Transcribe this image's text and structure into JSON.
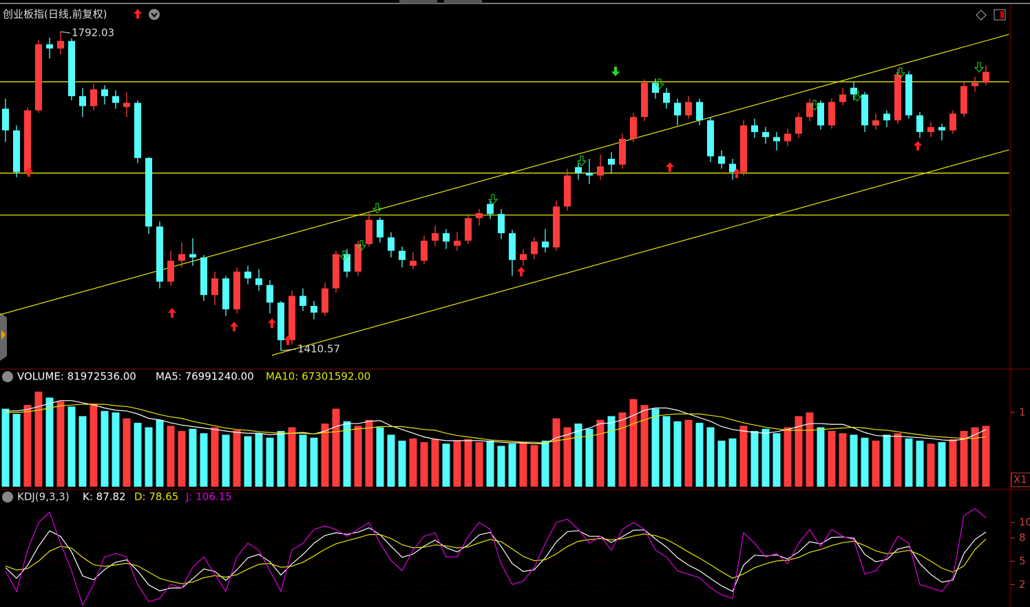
{
  "chart_data": [
    {
      "type": "candlestick",
      "title": "创业板指(日线,前复权)",
      "open": [
        1700,
        1674,
        1624,
        1698,
        1777,
        1772,
        1781,
        1715,
        1703,
        1723,
        1715,
        1702,
        1707,
        1641,
        1559,
        1493,
        1518,
        1526,
        1522,
        1477,
        1497,
        1460,
        1505,
        1497,
        1489,
        1468,
        1423,
        1476,
        1464,
        1456,
        1485,
        1526,
        1505,
        1538,
        1567,
        1546,
        1530,
        1512,
        1518,
        1542,
        1551,
        1536,
        1542,
        1569,
        1586,
        1574,
        1551,
        1519,
        1526,
        1541,
        1534,
        1583,
        1630,
        1623,
        1620,
        1640,
        1633,
        1664,
        1690,
        1731,
        1719,
        1707,
        1692,
        1708,
        1686,
        1643,
        1634,
        1624,
        1680,
        1672,
        1666,
        1661,
        1670,
        1690,
        1707,
        1680,
        1708,
        1725,
        1717,
        1680,
        1694,
        1686,
        1741,
        1692,
        1672,
        1678,
        1674,
        1694,
        1727,
        1731
      ],
      "high": [
        1712,
        1680,
        1702,
        1782,
        1785,
        1792.03,
        1784,
        1725,
        1730,
        1728,
        1722,
        1720,
        1710,
        1642,
        1565,
        1530,
        1540,
        1545,
        1525,
        1505,
        1500,
        1510,
        1512,
        1508,
        1495,
        1470,
        1482,
        1485,
        1470,
        1492,
        1530,
        1532,
        1542,
        1575,
        1570,
        1552,
        1535,
        1528,
        1548,
        1560,
        1556,
        1552,
        1572,
        1580,
        1590,
        1580,
        1555,
        1532,
        1546,
        1556,
        1590,
        1628,
        1635,
        1640,
        1645,
        1648,
        1670,
        1695,
        1735,
        1736,
        1725,
        1712,
        1715,
        1712,
        1690,
        1650,
        1640,
        1686,
        1688,
        1678,
        1672,
        1676,
        1695,
        1712,
        1710,
        1712,
        1725,
        1732,
        1720,
        1694,
        1698,
        1748,
        1745,
        1696,
        1684,
        1682,
        1698,
        1732,
        1738,
        1752
      ],
      "low": [
        1660,
        1618,
        1620,
        1695,
        1760,
        1765,
        1710,
        1690,
        1698,
        1705,
        1700,
        1690,
        1635,
        1550,
        1485,
        1488,
        1510,
        1512,
        1470,
        1465,
        1452,
        1455,
        1490,
        1482,
        1455,
        1410.57,
        1418,
        1458,
        1448,
        1452,
        1480,
        1498,
        1500,
        1535,
        1540,
        1522,
        1510,
        1508,
        1514,
        1536,
        1532,
        1530,
        1538,
        1560,
        1568,
        1544,
        1500,
        1512,
        1520,
        1528,
        1530,
        1578,
        1615,
        1610,
        1615,
        1622,
        1628,
        1660,
        1685,
        1712,
        1700,
        1680,
        1688,
        1680,
        1636,
        1628,
        1615,
        1620,
        1665,
        1658,
        1650,
        1655,
        1665,
        1685,
        1675,
        1676,
        1704,
        1710,
        1672,
        1675,
        1678,
        1682,
        1688,
        1665,
        1666,
        1662,
        1670,
        1690,
        1720,
        1728
      ],
      "close": [
        1674,
        1624,
        1698,
        1777,
        1772,
        1781,
        1715,
        1703,
        1723,
        1715,
        1707,
        1707,
        1641,
        1559,
        1493,
        1518,
        1526,
        1522,
        1477,
        1497,
        1460,
        1505,
        1497,
        1489,
        1468,
        1423,
        1476,
        1464,
        1456,
        1485,
        1526,
        1505,
        1538,
        1567,
        1546,
        1530,
        1519,
        1518,
        1542,
        1551,
        1541,
        1542,
        1569,
        1575,
        1574,
        1551,
        1519,
        1526,
        1541,
        1534,
        1583,
        1620,
        1623,
        1620,
        1631,
        1633,
        1664,
        1690,
        1731,
        1719,
        1707,
        1692,
        1708,
        1686,
        1643,
        1634,
        1624,
        1680,
        1672,
        1666,
        1661,
        1670,
        1690,
        1707,
        1680,
        1708,
        1717,
        1717,
        1680,
        1686,
        1686,
        1741,
        1692,
        1672,
        1678,
        1674,
        1694,
        1727,
        1731,
        1744
      ],
      "up_color": "#ff3c3c",
      "down_color": "#54fcfc",
      "ylim": [
        1390,
        1830
      ],
      "hlines": {
        "values": [
          1732.2,
          1622.9,
          1572.7
        ],
        "color": "#e8e800"
      },
      "trendlines": [
        {
          "x": [
            -0.5,
            91.1
          ],
          "y": [
            1453.5,
            1788.9
          ]
        },
        {
          "x": [
            24.2,
            91.1
          ],
          "y": [
            1405,
            1650.8
          ]
        }
      ],
      "annotations": [
        "1792.03",
        "1410.57"
      ]
    },
    {
      "type": "bar",
      "ylim": [
        0,
        1.37
      ],
      "yticks": [
        1
      ],
      "unit_label": "X1",
      "series": [
        {
          "name": "VOLUME: 81972536.00",
          "color": "#ffffff",
          "values": [
            1.05,
            0.98,
            1.1,
            1.28,
            1.2,
            1.15,
            1.08,
            0.95,
            1.12,
            1.02,
            1.0,
            0.92,
            0.86,
            0.8,
            0.9,
            0.82,
            0.75,
            0.78,
            0.72,
            0.8,
            0.7,
            0.76,
            0.68,
            0.72,
            0.66,
            0.75,
            0.8,
            0.7,
            0.66,
            0.85,
            1.05,
            0.88,
            0.82,
            0.9,
            0.8,
            0.7,
            0.62,
            0.65,
            0.6,
            0.64,
            0.58,
            0.62,
            0.64,
            0.6,
            0.62,
            0.55,
            0.58,
            0.6,
            0.56,
            0.62,
            0.92,
            0.8,
            0.85,
            0.78,
            0.9,
            0.95,
            1.0,
            1.18,
            1.1,
            1.05,
            0.95,
            0.88,
            0.9,
            0.86,
            0.8,
            0.62,
            0.65,
            0.82,
            0.75,
            0.78,
            0.72,
            0.8,
            0.95,
            1.0,
            0.8,
            0.75,
            0.72,
            0.7,
            0.66,
            0.62,
            0.7,
            0.72,
            0.65,
            0.62,
            0.58,
            0.6,
            0.64,
            0.75,
            0.8,
            0.81972536
          ]
        },
        {
          "name": "MA5: 76991240.00",
          "color": "#ffffff",
          "values": [
            1.02,
            1.02,
            1.04,
            1.08,
            1.12,
            1.16,
            1.16,
            1.13,
            1.1,
            1.06,
            1.03,
            1.02,
            0.98,
            0.92,
            0.9,
            0.86,
            0.83,
            0.81,
            0.79,
            0.77,
            0.75,
            0.73,
            0.72,
            0.72,
            0.7,
            0.71,
            0.72,
            0.73,
            0.71,
            0.75,
            0.81,
            0.85,
            0.85,
            0.88,
            0.89,
            0.82,
            0.77,
            0.72,
            0.67,
            0.64,
            0.62,
            0.62,
            0.62,
            0.62,
            0.61,
            0.6,
            0.59,
            0.59,
            0.58,
            0.58,
            0.66,
            0.7,
            0.75,
            0.79,
            0.85,
            0.86,
            0.9,
            0.96,
            1.03,
            1.06,
            1.06,
            1.03,
            0.98,
            0.93,
            0.88,
            0.81,
            0.77,
            0.75,
            0.73,
            0.72,
            0.74,
            0.77,
            0.81,
            0.85,
            0.85,
            0.84,
            0.84,
            0.79,
            0.73,
            0.69,
            0.68,
            0.68,
            0.67,
            0.66,
            0.65,
            0.63,
            0.62,
            0.64,
            0.7,
            0.7699124
          ]
        },
        {
          "name": "MA10: 67301592.00",
          "color": "#e8e800",
          "values": [
            1.0,
            1.0,
            1.01,
            1.03,
            1.06,
            1.09,
            1.1,
            1.11,
            1.11,
            1.11,
            1.09,
            1.08,
            1.05,
            1.01,
            0.97,
            0.94,
            0.92,
            0.88,
            0.85,
            0.82,
            0.79,
            0.77,
            0.76,
            0.74,
            0.73,
            0.72,
            0.72,
            0.72,
            0.71,
            0.73,
            0.74,
            0.76,
            0.78,
            0.79,
            0.81,
            0.81,
            0.81,
            0.79,
            0.77,
            0.76,
            0.72,
            0.69,
            0.67,
            0.65,
            0.63,
            0.62,
            0.61,
            0.6,
            0.6,
            0.59,
            0.62,
            0.64,
            0.67,
            0.68,
            0.71,
            0.75,
            0.79,
            0.85,
            0.9,
            0.95,
            0.97,
            0.98,
            0.98,
            0.98,
            0.96,
            0.94,
            0.9,
            0.86,
            0.83,
            0.8,
            0.78,
            0.76,
            0.76,
            0.76,
            0.77,
            0.78,
            0.79,
            0.8,
            0.79,
            0.77,
            0.76,
            0.74,
            0.72,
            0.7,
            0.68,
            0.67,
            0.66,
            0.65,
            0.65,
            0.67301592
          ]
        }
      ]
    },
    {
      "type": "line",
      "title": "KDJ(9,3,3)",
      "ylim": [
        -9,
        140
      ],
      "yticks": [
        {
          "value": 20,
          "label": "2"
        },
        {
          "value": 50,
          "label": "5"
        },
        {
          "value": 80,
          "label": "8"
        },
        {
          "value": 100,
          "label": "10"
        }
      ],
      "series": [
        {
          "name": "K: 87.82",
          "color": "#ffffff",
          "values": [
            41.8,
            28.0,
            44.4,
            69.4,
            89.2,
            82.0,
            62.1,
            31.1,
            26.1,
            39.4,
            48.7,
            51.8,
            37.5,
            19.6,
            11.8,
            15.5,
            15.5,
            27.5,
            40.1,
            37.0,
            25.3,
            38.9,
            54.4,
            58.9,
            49.4,
            32.2,
            46.7,
            58.7,
            73.3,
            83.3,
            86.8,
            84.7,
            87.6,
            93.2,
            84.2,
            69.3,
            55.1,
            59.3,
            69.6,
            77.3,
            67.5,
            62.1,
            71.1,
            84.1,
            87.3,
            69.0,
            47.0,
            36.8,
            39.2,
            54.5,
            75.0,
            88.2,
            89.5,
            82.2,
            82.2,
            74.2,
            81.8,
            90.0,
            90.5,
            78.8,
            68.4,
            54.6,
            45.0,
            37.8,
            27.8,
            18.3,
            11.1,
            45.1,
            57.8,
            56.8,
            58.2,
            53.0,
            62.1,
            75.2,
            72.4,
            80.8,
            81.4,
            79.8,
            58.9,
            49.4,
            52.2,
            65.7,
            69.1,
            47.0,
            32.9,
            23.1,
            25.7,
            60.0,
            78.0,
            87.82
          ]
        },
        {
          "name": "D: 78.65",
          "color": "#e8e800",
          "values": [
            43.9,
            38.7,
            40.6,
            50.1,
            63.0,
            69.3,
            66.9,
            55.1,
            45.5,
            43.5,
            45.2,
            47.4,
            44.1,
            36.0,
            28.0,
            23.9,
            21.1,
            23.2,
            28.8,
            31.5,
            29.5,
            32.6,
            39.8,
            46.1,
            47.2,
            42.2,
            43.7,
            48.7,
            56.8,
            65.5,
            72.5,
            76.5,
            80.2,
            84.5,
            84.4,
            79.4,
            71.4,
            67.4,
            68.1,
            71.1,
            69.9,
            67.3,
            68.6,
            73.7,
            78.2,
            75.2,
            65.9,
            56.3,
            50.7,
            51.9,
            59.5,
            69.0,
            75.8,
            77.9,
            79.3,
            77.6,
            79.0,
            82.6,
            85.2,
            83.1,
            78.2,
            70.4,
            62.0,
            54.0,
            45.4,
            36.5,
            28.1,
            33.7,
            41.7,
            46.7,
            50.5,
            51.3,
            54.9,
            61.6,
            65.2,
            70.3,
            74.0,
            75.9,
            70.3,
            63.4,
            59.7,
            61.7,
            64.1,
            58.5,
            50.0,
            41.1,
            36.0,
            43.9,
            65.0,
            78.65
          ]
        },
        {
          "name": "J: 106.15",
          "color": "#e000e0",
          "values": [
            37.8,
            11.1,
            64.4,
            100,
            113.3,
            73.3,
            37.8,
            -6.7,
            20,
            55.6,
            60,
            55.6,
            20,
            -2.2,
            2.2,
            20,
            15.6,
            42.2,
            55.6,
            33.3,
            11.1,
            55.6,
            73.3,
            64.4,
            37.8,
            11.1,
            64.4,
            73.3,
            91.1,
            95.6,
            91.1,
            82.2,
            91.1,
            100,
            73.3,
            51.1,
            37.8,
            64.4,
            82.2,
            86.7,
            55.6,
            55.6,
            82.2,
            100,
            91.1,
            46.7,
            20,
            24.4,
            42.2,
            73.3,
            100,
            104.4,
            91.1,
            73.3,
            82.2,
            64.4,
            91.1,
            100,
            91.1,
            64.4,
            55.6,
            37.8,
            33.3,
            28.9,
            15.6,
            6.7,
            2.2,
            86.7,
            73.3,
            55.6,
            60,
            46.7,
            73.3,
            91.1,
            68.9,
            91.1,
            82.2,
            77.8,
            33.3,
            37.8,
            55.6,
            82.2,
            73.3,
            20,
            15.6,
            11.1,
            28.9,
            108.9,
            117.8,
            106.15
          ]
        }
      ]
    }
  ]
}
